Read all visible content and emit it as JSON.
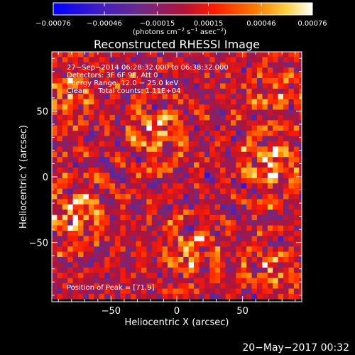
{
  "chart_data": {
    "type": "heatmap",
    "title": "Reconstructed RHESSI Image",
    "xlabel": "Heliocentric X (arcsec)",
    "ylabel": "Heliocentric Y (arcsec)",
    "xlim": [
      -95,
      95
    ],
    "ylim": [
      -95,
      95
    ],
    "x_ticks": [
      -50,
      0,
      50
    ],
    "y_ticks": [
      50,
      0,
      -50
    ],
    "x_tick_labels": [
      "−50",
      "0",
      "50"
    ],
    "y_tick_labels": [
      "50",
      "0",
      "−50"
    ],
    "colorbar": {
      "ticks": [
        -0.00076,
        -0.00046,
        -0.00015,
        0.00015,
        0.00046,
        0.00076
      ],
      "tick_labels": [
        "−0.00076",
        "−0.00046",
        "−0.00015",
        "0.00015",
        "0.00046",
        "0.00076"
      ],
      "units_prefix": "(photons cm",
      "units_exp1": "−2",
      "units_mid": " s",
      "units_exp2": "−1",
      "units_mid2": " asec",
      "units_exp3": "−2",
      "units_suffix": ")",
      "colormap": "blue-purple-red-orange-yellow-white",
      "vmin": -0.00076,
      "vmax": 0.00076
    },
    "info_lines": [
      "27−Sep−2014 06:28:32.000 to 06:38:32.000",
      "Detectors: 3F 6F 9F, Att 0",
      "Energy Range: 12.0 − 25.0 keV",
      "Clean     Total counts: 1.11E+04"
    ],
    "peak_label": "Position of Peak = [71,9]",
    "pixel_size_arcsec": 4,
    "bright_sources": [
      {
        "x": -78,
        "y": -28,
        "peak": 0.00076
      },
      {
        "x": -16,
        "y": 34,
        "peak": 0.00068
      },
      {
        "x": 71,
        "y": 9,
        "peak": 0.00076
      },
      {
        "x": 10,
        "y": -58,
        "peak": 0.0006
      },
      {
        "x": -85,
        "y": 62,
        "peak": 0.00055
      },
      {
        "x": 78,
        "y": 64,
        "peak": 0.00045
      },
      {
        "x": 72,
        "y": -72,
        "peak": 0.00042
      }
    ]
  },
  "footer": {
    "timestamp": "20−May−2017 00:32"
  }
}
